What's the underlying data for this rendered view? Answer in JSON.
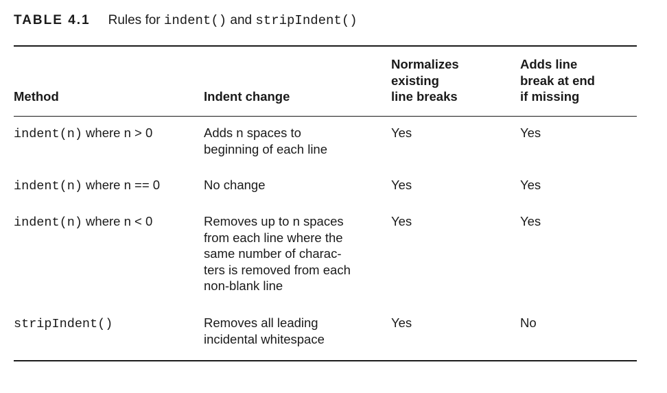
{
  "table": {
    "label": "TABLE 4.1",
    "title_prefix": "Rules for ",
    "title_code1": "indent()",
    "title_and": " and ",
    "title_code2": "stripIndent()",
    "headers": {
      "method": "Method",
      "indent_change": "Indent change",
      "normalizes": "Normalizes\nexisting\nline breaks",
      "adds_break": "Adds line\nbreak at end\nif missing"
    },
    "rows": [
      {
        "method_code": "indent(n)",
        "method_suffix": " where n > 0",
        "indent_change": "Adds n spaces to\nbeginning of each line",
        "normalizes": "Yes",
        "adds_break": "Yes"
      },
      {
        "method_code": "indent(n)",
        "method_suffix": " where n == 0",
        "indent_change": "No change",
        "normalizes": "Yes",
        "adds_break": "Yes"
      },
      {
        "method_code": "indent(n)",
        "method_suffix": " where n < 0",
        "indent_change": "Removes up to n spaces\nfrom each line where the\nsame number of charac-\nters is removed from each\nnon-blank line",
        "normalizes": "Yes",
        "adds_break": "Yes"
      },
      {
        "method_code": "stripIndent()",
        "method_suffix": "",
        "indent_change": "Removes all leading\nincidental whitespace",
        "normalizes": "Yes",
        "adds_break": "No"
      }
    ]
  }
}
